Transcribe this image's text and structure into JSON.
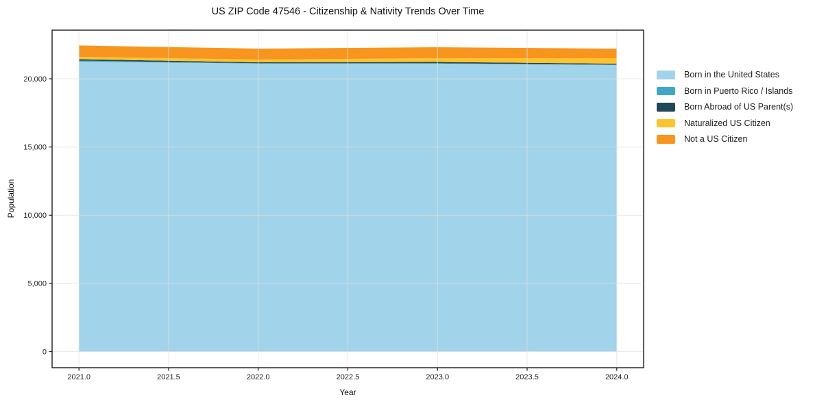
{
  "chart_data": {
    "type": "area",
    "stacked": true,
    "title": "US ZIP Code 47546 - Citizenship & Nativity Trends Over Time",
    "xlabel": "Year",
    "ylabel": "Population",
    "x": [
      2021,
      2022,
      2023,
      2024
    ],
    "series": [
      {
        "name": "Born in the United States",
        "color": "#a1d3ea",
        "values": [
          21260,
          21110,
          21110,
          21010
        ]
      },
      {
        "name": "Born in Puerto Rico / Islands",
        "color": "#42a7c5",
        "values": [
          75,
          25,
          25,
          25
        ]
      },
      {
        "name": "Born Abroad of US Parent(s)",
        "color": "#1f4757",
        "values": [
          100,
          75,
          100,
          75
        ]
      },
      {
        "name": "Naturalized US Citizen",
        "color": "#fdc32f",
        "values": [
          175,
          200,
          275,
          400
        ]
      },
      {
        "name": "Not a US Citizen",
        "color": "#f8951f",
        "values": [
          830,
          800,
          800,
          700
        ]
      }
    ],
    "x_ticks": {
      "values": [
        2021.0,
        2021.5,
        2022.0,
        2022.5,
        2023.0,
        2023.5,
        2024.0
      ],
      "labels": [
        "2021.0",
        "2021.5",
        "2022.0",
        "2022.5",
        "2023.0",
        "2023.5",
        "2024.0"
      ]
    },
    "y_ticks": {
      "values": [
        0,
        5000,
        10000,
        15000,
        20000
      ],
      "labels": [
        "0",
        "5,000",
        "10,000",
        "15,000",
        "20,000"
      ]
    },
    "xlim": [
      2020.85,
      2024.15
    ],
    "ylim": [
      -1178,
      23566
    ],
    "grid": true,
    "legend_position": "right",
    "frame_color": "#1a1a1a",
    "grid_color": "rgba(222,222,222,0.65)"
  }
}
